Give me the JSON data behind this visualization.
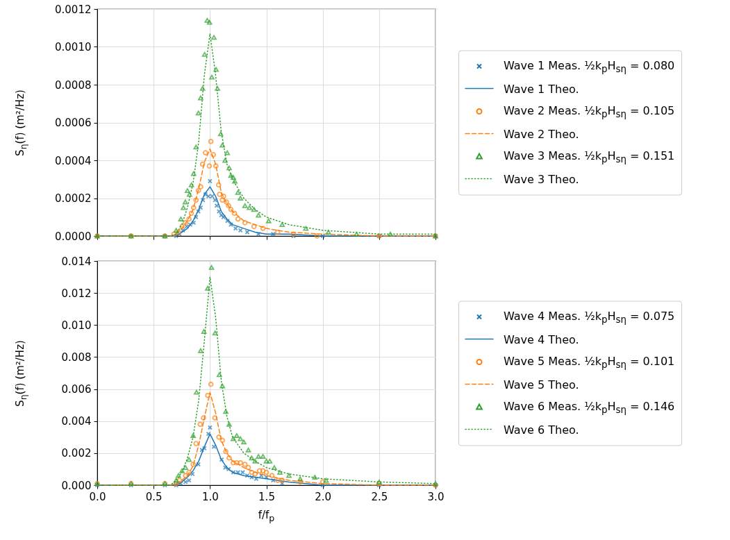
{
  "chart_data": [
    {
      "type": "line",
      "ylabel": "S$_{η}$(f) (m²/Hz)",
      "grid": true,
      "legend": "right",
      "tick_labels": "y",
      "xlim": [
        0,
        3
      ],
      "xticks": [
        0,
        0.5,
        1,
        1.5,
        2,
        2.5,
        3
      ],
      "ylim": [
        0,
        0.0012
      ],
      "yticks": [
        {
          "value": 0,
          "label": "0.0000"
        },
        {
          "value": 0.0002,
          "label": "0.0002"
        },
        {
          "value": 0.0004,
          "label": "0.0004"
        },
        {
          "value": 0.0006,
          "label": "0.0006"
        },
        {
          "value": 0.0008,
          "label": "0.0008"
        },
        {
          "value": 0.001,
          "label": "0.0010"
        },
        {
          "value": 0.0012,
          "label": "0.0012"
        }
      ],
      "x": [
        0,
        0.65,
        0.7,
        0.75,
        0.8,
        0.85,
        0.9,
        0.95,
        1.0,
        1.05,
        1.1,
        1.15,
        1.2,
        1.3,
        1.4,
        1.5,
        1.7,
        2.0,
        2.5,
        3.0
      ],
      "series": [
        {
          "name": "Wave 1 Meas. ½k$_{p}$H$_{sη}$ = 0.080",
          "type": "scatter",
          "marker": "cross",
          "color": "#1f77b4",
          "x": [
            0,
            0.3,
            0.6,
            0.7,
            0.73,
            0.76,
            0.793,
            0.824,
            0.855,
            0.876,
            0.897,
            0.917,
            0.938,
            0.96,
            0.986,
            1.0,
            1.02,
            1.045,
            1.06,
            1.08,
            1.1,
            1.12,
            1.155,
            1.186,
            1.227,
            1.27,
            1.33,
            1.43,
            1.56,
            1.74,
            2.0,
            2.5,
            3.0
          ],
          "values": [
            0,
            0,
            0,
            0,
            1e-05,
            3e-05,
            5e-05,
            6e-05,
            7e-05,
            0.0001,
            0.00013,
            0.00015,
            0.00019,
            0.00022,
            0.00021,
            0.00029,
            0.00021,
            0.00019,
            0.00016,
            0.00013,
            0.00011,
            0.0001,
            8e-05,
            6e-05,
            4e-05,
            3e-05,
            2e-05,
            1e-05,
            1e-05,
            0,
            0,
            0,
            0
          ]
        },
        {
          "name": "Wave 1 Theo.",
          "line_style": "solid",
          "color": "#1f77b4",
          "values": [
            0,
            0,
            0,
            2e-05,
            4e-05,
            8e-05,
            0.00014,
            0.00022,
            0.00026,
            0.00021,
            0.00013,
            9e-05,
            6e-05,
            4e-05,
            2e-05,
            1e-05,
            1e-05,
            0,
            0,
            0
          ]
        },
        {
          "name": "Wave 2 Meas. ½k$_{p}$H$_{sη}$ = 0.105",
          "type": "scatter",
          "marker": "circle",
          "color": "#ff7f0e",
          "x": [
            0,
            0.3,
            0.6,
            0.68,
            0.72,
            0.752,
            0.783,
            0.814,
            0.835,
            0.855,
            0.876,
            0.897,
            0.917,
            0.934,
            0.96,
            0.994,
            1.008,
            1.03,
            1.052,
            1.076,
            1.085,
            1.11,
            1.12,
            1.145,
            1.165,
            1.186,
            1.217,
            1.248,
            1.31,
            1.39,
            1.47,
            1.6,
            1.74,
            1.95,
            2.5,
            3.0
          ],
          "values": [
            0,
            0,
            0,
            1e-05,
            2e-05,
            5e-05,
            7e-05,
            9e-05,
            0.00012,
            0.00015,
            0.00019,
            0.00024,
            0.00026,
            0.00038,
            0.00044,
            0.00037,
            0.0005,
            0.00043,
            0.00037,
            0.00027,
            0.00022,
            0.00019,
            0.00021,
            0.00018,
            0.00016,
            0.00014,
            0.00012,
            9e-05,
            7e-05,
            5e-05,
            4e-05,
            2e-05,
            1e-05,
            0,
            0,
            0
          ]
        },
        {
          "name": "Wave 2 Theo.",
          "line_style": "dashed",
          "color": "#ff7f0e",
          "values": [
            0,
            0,
            1e-05,
            4e-05,
            8e-05,
            0.00014,
            0.00025,
            0.00039,
            0.00046,
            0.00038,
            0.00023,
            0.00017,
            0.00013,
            8e-05,
            6e-05,
            4e-05,
            2e-05,
            1e-05,
            0,
            0
          ]
        },
        {
          "name": "Wave 3 Meas. ½k$_{p}$H$_{sη}$ = 0.151",
          "type": "scatter",
          "marker": "triangle",
          "color": "#2ca02c",
          "x": [
            0,
            0.3,
            0.6,
            0.7,
            0.742,
            0.764,
            0.781,
            0.8,
            0.818,
            0.835,
            0.855,
            0.876,
            0.897,
            0.917,
            0.934,
            0.952,
            0.975,
            0.996,
            1.016,
            1.035,
            1.054,
            1.066,
            1.095,
            1.11,
            1.134,
            1.153,
            1.17,
            1.186,
            1.207,
            1.22,
            1.248,
            1.27,
            1.31,
            1.35,
            1.39,
            1.43,
            1.52,
            1.64,
            1.85,
            2.05,
            2.3,
            2.6,
            3.0
          ],
          "values": [
            0,
            0,
            0,
            3e-05,
            9e-05,
            0.00015,
            0.00018,
            0.00024,
            0.00022,
            0.00027,
            0.00033,
            0.00047,
            0.00065,
            0.00073,
            0.00078,
            0.00096,
            0.00114,
            0.00113,
            0.00084,
            0.00105,
            0.00088,
            0.00078,
            0.00054,
            0.00048,
            0.0004,
            0.00044,
            0.00036,
            0.00032,
            0.00031,
            0.00029,
            0.00023,
            0.0002,
            0.00016,
            0.00015,
            0.00014,
            0.00011,
            8e-05,
            6e-05,
            4e-05,
            2e-05,
            1e-05,
            1e-05,
            0
          ]
        },
        {
          "name": "Wave 3 Theo.",
          "line_style": "dotted",
          "color": "#2ca02c",
          "values": [
            0,
            0,
            1e-05,
            6e-05,
            0.00015,
            0.00028,
            0.0005,
            0.00085,
            0.00107,
            0.00085,
            0.00055,
            0.00038,
            0.0003,
            0.0002,
            0.00014,
            0.0001,
            6e-05,
            3e-05,
            1e-05,
            1e-05
          ]
        }
      ]
    },
    {
      "type": "line",
      "xlabel": "f/f$_{p}$",
      "ylabel": "S$_{η}$(f) (m²/Hz)",
      "grid": true,
      "legend": "right",
      "xlim": [
        0,
        3
      ],
      "xticks": [
        {
          "value": 0,
          "label": "0.0"
        },
        {
          "value": 0.5,
          "label": "0.5"
        },
        {
          "value": 1,
          "label": "1.0"
        },
        {
          "value": 1.5,
          "label": "1.5"
        },
        {
          "value": 2,
          "label": "2.0"
        },
        {
          "value": 2.5,
          "label": "2.5"
        },
        {
          "value": 3,
          "label": "3.0"
        }
      ],
      "ylim": [
        0,
        0.014
      ],
      "yticks": [
        {
          "value": 0,
          "label": "0.000"
        },
        {
          "value": 0.002,
          "label": "0.002"
        },
        {
          "value": 0.004,
          "label": "0.004"
        },
        {
          "value": 0.006,
          "label": "0.006"
        },
        {
          "value": 0.008,
          "label": "0.008"
        },
        {
          "value": 0.01,
          "label": "0.010"
        },
        {
          "value": 0.012,
          "label": "0.012"
        },
        {
          "value": 0.014,
          "label": "0.014"
        }
      ],
      "x": [
        0,
        0.65,
        0.7,
        0.75,
        0.8,
        0.85,
        0.9,
        0.95,
        1.0,
        1.05,
        1.1,
        1.15,
        1.2,
        1.3,
        1.4,
        1.5,
        1.7,
        2.0,
        2.5,
        3.0
      ],
      "series": [
        {
          "name": "Wave 4 Meas. ½k$_{p}$H$_{sη}$ = 0.075",
          "type": "scatter",
          "marker": "cross",
          "color": "#1f77b4",
          "x": [
            0,
            0.3,
            0.6,
            0.7,
            0.74,
            0.783,
            0.814,
            0.845,
            0.897,
            0.928,
            0.95,
            0.986,
            1.0,
            1.035,
            1.103,
            1.136,
            1.165,
            1.207,
            1.248,
            1.29,
            1.33,
            1.37,
            1.41,
            1.455,
            1.5,
            1.56,
            1.64,
            2.0,
            2.5,
            3.0
          ],
          "values": [
            0,
            0,
            0,
            0,
            0.0001,
            0.0002,
            0.0003,
            0.0007,
            0.0013,
            0.0022,
            0.0023,
            0.0032,
            0.0036,
            0.0024,
            0.0016,
            0.0011,
            0.001,
            0.0008,
            0.0008,
            0.0008,
            0.0006,
            0.0005,
            0.0004,
            0.0006,
            0.0005,
            0.0003,
            0.0001,
            0,
            0,
            0
          ]
        },
        {
          "name": "Wave 4 Theo.",
          "line_style": "solid",
          "color": "#1f77b4",
          "values": [
            0,
            0,
            0,
            0.0002,
            0.0005,
            0.0009,
            0.0015,
            0.0024,
            0.0032,
            0.0025,
            0.0016,
            0.0011,
            0.0008,
            0.0006,
            0.0005,
            0.0004,
            0.0002,
            0,
            0,
            0
          ]
        },
        {
          "name": "Wave 5 Meas. ½k$_{p}$H$_{sη}$ = 0.101",
          "type": "scatter",
          "marker": "circle",
          "color": "#ff7f0e",
          "x": [
            0,
            0.3,
            0.6,
            0.7,
            0.73,
            0.783,
            0.814,
            0.851,
            0.876,
            0.913,
            0.942,
            0.98,
            1.008,
            1.043,
            1.079,
            1.11,
            1.14,
            1.17,
            1.207,
            1.237,
            1.27,
            1.31,
            1.34,
            1.37,
            1.4,
            1.44,
            1.47,
            1.5,
            1.55,
            1.6,
            1.64,
            1.8,
            2.0,
            2.5,
            3.0
          ],
          "values": [
            0.0001,
            0.0001,
            0.0001,
            0.0001,
            0.0003,
            0.0006,
            0.0008,
            0.0013,
            0.0026,
            0.0038,
            0.0042,
            0.0056,
            0.0063,
            0.0042,
            0.003,
            0.0028,
            0.0021,
            0.0017,
            0.0014,
            0.0014,
            0.0014,
            0.0013,
            0.0011,
            0.0008,
            0.0007,
            0.0009,
            0.0009,
            0.0008,
            0.0006,
            0.0003,
            0.0003,
            0.0002,
            0.0002,
            0.0001,
            0
          ]
        },
        {
          "name": "Wave 5 Theo.",
          "line_style": "dashed",
          "color": "#ff7f0e",
          "values": [
            0,
            0,
            0.0001,
            0.0003,
            0.0006,
            0.0012,
            0.0025,
            0.0042,
            0.0058,
            0.0045,
            0.0028,
            0.002,
            0.0015,
            0.0011,
            0.0008,
            0.0006,
            0.0003,
            0.0001,
            0,
            0
          ]
        },
        {
          "name": "Wave 6 Meas. ½k$_{p}$H$_{sη}$ = 0.146",
          "type": "scatter",
          "marker": "triangle",
          "color": "#2ca02c",
          "x": [
            0,
            0.3,
            0.6,
            0.7,
            0.72,
            0.752,
            0.783,
            0.814,
            0.851,
            0.88,
            0.917,
            0.946,
            0.979,
            1.014,
            1.045,
            1.083,
            1.11,
            1.14,
            1.17,
            1.207,
            1.237,
            1.27,
            1.3,
            1.34,
            1.37,
            1.4,
            1.43,
            1.47,
            1.5,
            1.53,
            1.57,
            1.62,
            1.7,
            1.8,
            1.93,
            2.03,
            2.5,
            3.0
          ],
          "values": [
            0.0001,
            0.0001,
            0.0001,
            0.0003,
            0.0006,
            0.0009,
            0.0011,
            0.0016,
            0.0031,
            0.0058,
            0.0084,
            0.0096,
            0.0123,
            0.0136,
            0.0095,
            0.0069,
            0.0062,
            0.0046,
            0.0038,
            0.0029,
            0.0031,
            0.0029,
            0.0027,
            0.0022,
            0.0017,
            0.0015,
            0.0018,
            0.0018,
            0.0015,
            0.0015,
            0.0011,
            0.0008,
            0.0006,
            0.0004,
            0.0005,
            0.0003,
            0.0002,
            0.0001
          ]
        },
        {
          "name": "Wave 6 Theo.",
          "line_style": "dotted",
          "color": "#2ca02c",
          "values": [
            0,
            0,
            0.0003,
            0.0008,
            0.0017,
            0.003,
            0.0053,
            0.009,
            0.013,
            0.0105,
            0.0065,
            0.0043,
            0.003,
            0.002,
            0.0015,
            0.0011,
            0.0007,
            0.0004,
            0.0002,
            0.0001
          ]
        }
      ]
    }
  ]
}
